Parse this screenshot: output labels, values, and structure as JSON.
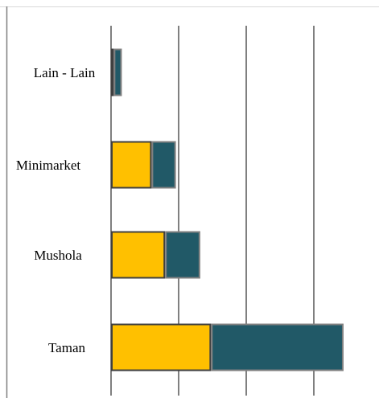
{
  "colors": {
    "series_1": "#FFC000",
    "series_2": "#215967",
    "bar_border_1": "#404040",
    "bar_border_2": "#808080",
    "gridline": "#808080",
    "frame": "#d9d9d9",
    "axis_line": "#808080"
  },
  "chart_data": {
    "type": "bar",
    "orientation": "horizontal",
    "stacked": true,
    "categories": [
      "Lain - Lain",
      "Minimarket",
      "Mushola",
      "Taman"
    ],
    "series": [
      {
        "values": [
          1,
          15,
          20,
          37
        ]
      },
      {
        "values": [
          3,
          9,
          13,
          49
        ]
      }
    ],
    "xlim": [
      0,
      100
    ],
    "grid": true,
    "legend": "none",
    "title": "",
    "xlabel": "",
    "ylabel": ""
  }
}
